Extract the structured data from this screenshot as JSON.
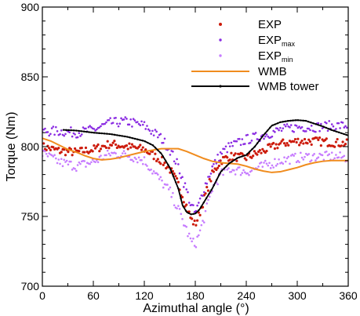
{
  "chart_data": {
    "type": "scatter",
    "title": "",
    "xlabel": "Azimuthal angle (°)",
    "ylabel": "Torque (Nm)",
    "xlim": [
      0,
      360
    ],
    "ylim": [
      700,
      900
    ],
    "xticks": [
      0,
      60,
      120,
      180,
      240,
      300,
      360
    ],
    "yticks": [
      700,
      750,
      800,
      850,
      900
    ],
    "legend_position": "top-right",
    "grid": false,
    "series": [
      {
        "name": "EXP",
        "legend_main": "EXP",
        "legend_sub": "",
        "kind": "scatter",
        "color": "#cc1a0a",
        "x": [
          0,
          20,
          40,
          60,
          80,
          100,
          120,
          140,
          150,
          160,
          170,
          175,
          180,
          185,
          190,
          200,
          210,
          220,
          240,
          260,
          280,
          300,
          320,
          340,
          360
        ],
        "y": [
          800,
          797,
          796,
          798,
          802,
          800,
          798,
          790,
          784,
          773,
          757,
          748,
          744,
          752,
          762,
          780,
          790,
          793,
          792,
          797,
          802,
          804,
          804,
          803,
          802
        ]
      },
      {
        "name": "EXPmax",
        "legend_main": "EXP",
        "legend_sub": "max",
        "kind": "scatter",
        "color": "#8a2be2",
        "x": [
          0,
          20,
          40,
          60,
          80,
          100,
          120,
          140,
          150,
          160,
          170,
          175,
          180,
          185,
          190,
          200,
          210,
          220,
          240,
          260,
          280,
          300,
          320,
          340,
          360
        ],
        "y": [
          811,
          811,
          810,
          812,
          817,
          818,
          815,
          806,
          798,
          786,
          768,
          758,
          752,
          760,
          770,
          785,
          795,
          800,
          805,
          808,
          812,
          814,
          814,
          815,
          815
        ]
      },
      {
        "name": "EXPmin",
        "legend_main": "EXP",
        "legend_sub": "min",
        "kind": "scatter",
        "color": "#c77dff",
        "x": [
          0,
          20,
          40,
          60,
          80,
          100,
          120,
          140,
          150,
          160,
          170,
          175,
          180,
          185,
          190,
          200,
          210,
          220,
          240,
          260,
          280,
          300,
          320,
          340,
          360
        ],
        "y": [
          795,
          789,
          786,
          789,
          795,
          794,
          790,
          775,
          768,
          755,
          740,
          732,
          730,
          738,
          748,
          770,
          780,
          784,
          782,
          786,
          790,
          792,
          793,
          793,
          792
        ]
      },
      {
        "name": "WMB",
        "legend_main": "WMB",
        "legend_sub": "",
        "kind": "line",
        "color": "#f08c1e",
        "x": [
          0,
          10,
          20,
          30,
          40,
          50,
          60,
          70,
          80,
          90,
          100,
          110,
          120,
          130,
          140,
          150,
          160,
          170,
          180,
          190,
          200,
          210,
          220,
          230,
          240,
          250,
          260,
          270,
          280,
          290,
          300,
          310,
          320,
          330,
          340,
          350,
          360
        ],
        "y": [
          806,
          804,
          801,
          798,
          796,
          793.5,
          791.5,
          790.5,
          791,
          792,
          793.5,
          795,
          796.5,
          797.5,
          798.5,
          798.5,
          798.5,
          796.5,
          794,
          791.5,
          789.5,
          788.5,
          788,
          787.5,
          786,
          784,
          782.5,
          781.5,
          782,
          783.5,
          785,
          787,
          788.5,
          789.5,
          790,
          790,
          790
        ]
      },
      {
        "name": "WMB tower",
        "legend_main": "WMB tower",
        "legend_sub": "",
        "kind": "line-markers",
        "color": "#000000",
        "x": [
          25,
          40,
          60,
          80,
          100,
          120,
          130,
          140,
          150,
          160,
          165,
          170,
          175,
          180,
          185,
          190,
          200,
          210,
          220,
          230,
          240,
          250,
          260,
          270,
          280,
          290,
          300,
          310,
          320,
          330,
          340,
          350,
          360
        ],
        "y": [
          812,
          811.5,
          810,
          809,
          807,
          804,
          801,
          795,
          785,
          770,
          758,
          753,
          751.5,
          752,
          755,
          760,
          770,
          782,
          788,
          792,
          794,
          800,
          808,
          815,
          817.5,
          818.5,
          819,
          818.5,
          816.5,
          814.5,
          812,
          810,
          808
        ]
      }
    ]
  }
}
